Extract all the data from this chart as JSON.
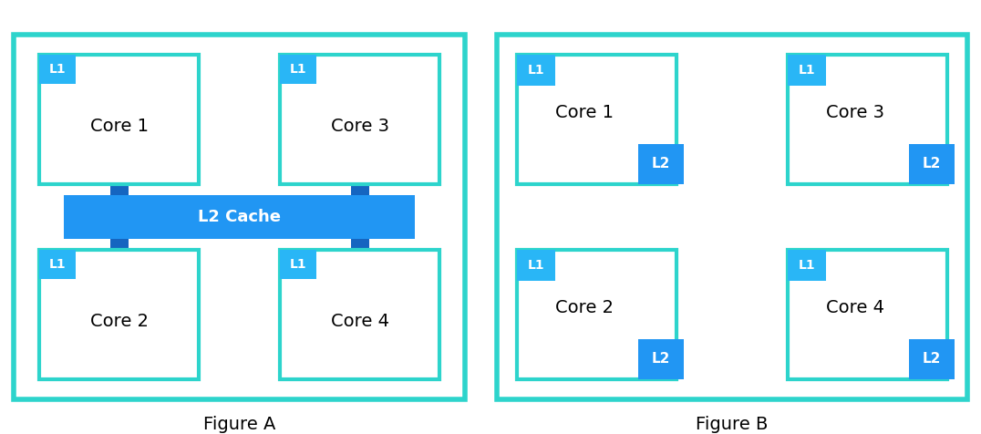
{
  "fig_width": 10.76,
  "fig_height": 4.76,
  "bg_color": "#ffffff",
  "teal_border": "#2DD4CC",
  "teal_border_lw": 4.0,
  "core_border": "#2DD4CC",
  "core_border_lw": 3.0,
  "l1_color": "#29B6F6",
  "l2_color": "#2196F3",
  "l2cache_color": "#2196F3",
  "connector_color": "#1565C0",
  "core_fill": "#ffffff",
  "core_text_color": "#000000",
  "fig_label_color": "#000000",
  "fig_label_fontsize": 14,
  "core_fontsize": 14,
  "cache_label_fontsize": 13,
  "l1_fontsize": 10,
  "l2_fontsize": 11,
  "figA_label": "Figure A",
  "figB_label": "Figure B",
  "l2cache_label": "L2 Cache"
}
